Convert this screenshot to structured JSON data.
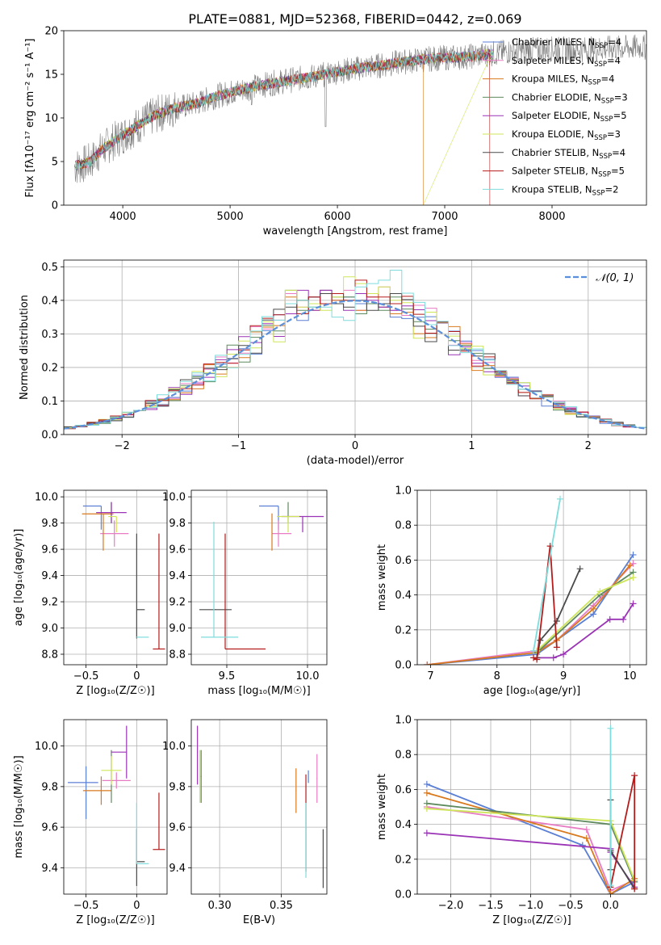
{
  "figure": {
    "title": "PLATE=0881, MJD=52368, FIBERID=0442, z=0.069"
  },
  "models": [
    {
      "name": "Chabrier MILES",
      "nssp": "4",
      "color": "#5b7fd4"
    },
    {
      "name": "Salpeter MILES",
      "nssp": "4",
      "color": "#e87cc4"
    },
    {
      "name": "Kroupa MILES",
      "nssp": "4",
      "color": "#d97a1e"
    },
    {
      "name": "Chabrier ELODIE",
      "nssp": "3",
      "color": "#5e8a5e"
    },
    {
      "name": "Salpeter ELODIE",
      "nssp": "5",
      "color": "#9a33b5"
    },
    {
      "name": "Kroupa ELODIE",
      "nssp": "3",
      "color": "#cfe65a"
    },
    {
      "name": "Chabrier STELIB",
      "nssp": "4",
      "color": "#4a4a4a"
    },
    {
      "name": "Salpeter STELIB",
      "nssp": "5",
      "color": "#b51c1c"
    },
    {
      "name": "Kroupa STELIB",
      "nssp": "2",
      "color": "#7fdcdc"
    }
  ],
  "chart_data": [
    {
      "id": "spectrum",
      "type": "line",
      "title": "PLATE=0881, MJD=52368, FIBERID=0442, z=0.069",
      "xlabel": "wavelength [Angstrom, rest frame]",
      "ylabel": "Flux [fλ10⁻¹⁷ erg cm⁻² s⁻¹ A⁻¹]",
      "xlim": [
        3450,
        8880
      ],
      "ylim": [
        0,
        20
      ],
      "xticks": [
        4000,
        5000,
        6000,
        7000,
        8000
      ],
      "yticks": [
        0,
        5,
        10,
        15,
        20
      ],
      "legend": "top-right",
      "data_continuum": {
        "x": [
          3500,
          3600,
          3700,
          3800,
          3900,
          4000,
          4100,
          4200,
          4300,
          4400,
          4500,
          4600,
          4700,
          4800,
          4900,
          5000,
          5200,
          5400,
          5600,
          5800,
          6000,
          6200,
          6400,
          6600,
          6800,
          7000,
          7200,
          7400,
          7600,
          7800,
          8000,
          8200,
          8400,
          8600,
          8800
        ],
        "y": [
          4.3,
          4.5,
          5.0,
          6.3,
          7.2,
          8.0,
          8.8,
          9.6,
          10.3,
          10.8,
          11.2,
          11.4,
          11.7,
          12.2,
          12.6,
          12.9,
          13.5,
          14.0,
          14.4,
          14.8,
          15.3,
          15.7,
          16.0,
          16.4,
          16.7,
          16.9,
          17.0,
          17.3,
          17.6,
          17.8,
          17.9,
          17.8,
          17.9,
          18.0,
          18.1
        ]
      },
      "model_continuum": {
        "x": [
          3550,
          3600,
          3700,
          3800,
          3900,
          4000,
          4100,
          4200,
          4300,
          4400,
          4500,
          4600,
          4700,
          4800,
          4900,
          5000,
          5200,
          5400,
          5600,
          5800,
          6000,
          6200,
          6400,
          6600,
          6800,
          7000,
          7200,
          7400
        ],
        "y": [
          4.5,
          4.6,
          5.0,
          6.3,
          7.2,
          8.0,
          8.8,
          9.6,
          10.3,
          10.8,
          11.2,
          11.4,
          11.7,
          12.2,
          12.6,
          12.9,
          13.5,
          14.0,
          14.4,
          14.8,
          15.3,
          15.7,
          16.0,
          16.4,
          16.7,
          16.9,
          17.0,
          17.3
        ]
      }
    },
    {
      "id": "residuals",
      "type": "histogram",
      "xlabel": "(data-model)/error",
      "ylabel": "Normed distribution",
      "xlim": [
        -2.5,
        2.5
      ],
      "ylim": [
        0,
        0.52
      ],
      "xticks": [
        -2,
        -1,
        0,
        1,
        2
      ],
      "yticks": [
        0.0,
        0.1,
        0.2,
        0.3,
        0.4,
        0.5
      ],
      "legend": "top-right",
      "reference_label": "𝒩(0, 1)",
      "reference_color": "#5b8fd9",
      "bin_width": 0.1,
      "peak_heights": [
        [
          0.36,
          0.34,
          0.41,
          0.39,
          0.4,
          0.41,
          0.39,
          0.42,
          0.38,
          0.35
        ],
        [
          0.42,
          0.38,
          0.39,
          0.43,
          0.4,
          0.43,
          0.37,
          0.41,
          0.44,
          0.37
        ],
        [
          0.41,
          0.4,
          0.37,
          0.39,
          0.4,
          0.4,
          0.37,
          0.42,
          0.38,
          0.36
        ],
        [
          0.43,
          0.37,
          0.38,
          0.43,
          0.41,
          0.41,
          0.36,
          0.39,
          0.37,
          0.41
        ],
        [
          0.36,
          0.43,
          0.37,
          0.43,
          0.39,
          0.37,
          0.42,
          0.4,
          0.38,
          0.37
        ],
        [
          0.43,
          0.38,
          0.39,
          0.37,
          0.41,
          0.47,
          0.45,
          0.42,
          0.44,
          0.4
        ],
        [
          0.38,
          0.4,
          0.41,
          0.42,
          0.39,
          0.38,
          0.4,
          0.37,
          0.39,
          0.42
        ],
        [
          0.39,
          0.36,
          0.41,
          0.39,
          0.42,
          0.4,
          0.46,
          0.41,
          0.41,
          0.39
        ],
        [
          0.39,
          0.4,
          0.38,
          0.38,
          0.35,
          0.34,
          0.44,
          0.45,
          0.46,
          0.49
        ]
      ]
    },
    {
      "id": "age-vs-Z",
      "type": "errorbar",
      "xlabel": "Z [log₁₀(Z/Z☉)]",
      "ylabel": "age  [log₁₀(age/yr)]",
      "xlim": [
        -0.72,
        0.3
      ],
      "ylim": [
        8.72,
        10.05
      ],
      "xticks": [
        -0.5,
        0.0
      ],
      "yticks": [
        8.8,
        9.0,
        9.2,
        9.4,
        9.6,
        9.8,
        10.0
      ],
      "points": [
        {
          "x": -0.35,
          "xerr": [
            0.18,
            0.0
          ],
          "y": 9.93,
          "yerr": [
            0.18,
            0.0
          ]
        },
        {
          "x": -0.22,
          "xerr": [
            0.14,
            0.14
          ],
          "y": 9.72,
          "yerr": [
            0.1,
            0.1
          ]
        },
        {
          "x": -0.33,
          "xerr": [
            0.21,
            0.1
          ],
          "y": 9.87,
          "yerr": [
            0.28,
            0.0
          ]
        },
        {
          "x": -0.25,
          "xerr": [
            0.0,
            0.0
          ],
          "y": 9.88,
          "yerr": [
            0.08,
            0.08
          ]
        },
        {
          "x": -0.25,
          "xerr": [
            0.15,
            0.15
          ],
          "y": 9.88,
          "yerr": [
            0.08,
            0.08
          ]
        },
        {
          "x": -0.2,
          "xerr": [
            0.08,
            0.0
          ],
          "y": 9.85,
          "yerr": [
            0.12,
            0.0
          ]
        },
        {
          "x": 0.0,
          "xerr": [
            0.0,
            0.08
          ],
          "y": 9.14,
          "yerr": [
            0.22,
            0.58
          ]
        },
        {
          "x": 0.22,
          "xerr": [
            0.06,
            0.06
          ],
          "y": 8.84,
          "yerr": [
            0.0,
            0.88
          ]
        },
        {
          "x": 0.0,
          "xerr": [
            0.0,
            0.12
          ],
          "y": 8.93,
          "yerr": [
            0.0,
            0.0
          ]
        }
      ]
    },
    {
      "id": "age-vs-mass",
      "type": "errorbar",
      "xlabel": "mass [log₁₀(M/M☉)]",
      "ylabel": "",
      "xlim": [
        9.28,
        10.12
      ],
      "ylim": [
        8.72,
        10.05
      ],
      "xticks": [
        9.5,
        10.0
      ],
      "yticks": [
        8.8,
        9.0,
        9.2,
        9.4,
        9.6,
        9.8,
        10.0
      ],
      "points": [
        {
          "x": 9.82,
          "xerr": [
            0.12,
            0.0
          ],
          "y": 9.93,
          "yerr": [
            0.18,
            0.0
          ]
        },
        {
          "x": 9.82,
          "xerr": [
            0.04,
            0.08
          ],
          "y": 9.72,
          "yerr": [
            0.1,
            0.1
          ]
        },
        {
          "x": 9.78,
          "xerr": [
            0.0,
            0.0
          ],
          "y": 9.87,
          "yerr": [
            0.28,
            0.0
          ]
        },
        {
          "x": 9.88,
          "xerr": [
            0.0,
            0.0
          ],
          "y": 9.88,
          "yerr": [
            0.08,
            0.08
          ]
        },
        {
          "x": 9.97,
          "xerr": [
            0.13,
            0.13
          ],
          "y": 9.85,
          "yerr": [
            0.12,
            0.0
          ]
        },
        {
          "x": 9.88,
          "xerr": [
            0.07,
            0.07
          ],
          "y": 9.85,
          "yerr": [
            0.12,
            0.0
          ]
        },
        {
          "x": 9.43,
          "xerr": [
            0.1,
            0.1
          ],
          "y": 9.14,
          "yerr": [
            0.0,
            0.0
          ]
        },
        {
          "x": 9.49,
          "xerr": [
            0.0,
            0.25
          ],
          "y": 8.84,
          "yerr": [
            0.0,
            0.88
          ]
        },
        {
          "x": 9.42,
          "xerr": [
            0.08,
            0.15
          ],
          "y": 8.93,
          "yerr": [
            0.0,
            0.88
          ]
        }
      ]
    },
    {
      "id": "mass-weight-vs-age",
      "type": "line",
      "xlabel": "age  [log₁₀(age/yr)]",
      "ylabel": "mass weight",
      "xlim": [
        6.8,
        10.25
      ],
      "ylim": [
        0,
        1
      ],
      "xticks": [
        7,
        8,
        9,
        10
      ],
      "yticks": [
        0.0,
        0.2,
        0.4,
        0.6,
        0.8,
        1.0
      ],
      "series": [
        {
          "x": [
            6.95,
            8.6,
            9.45,
            10.05
          ],
          "y": [
            0.0,
            0.06,
            0.29,
            0.63
          ]
        },
        {
          "x": [
            6.95,
            8.6,
            8.9,
            9.45,
            10.05
          ],
          "y": [
            0.0,
            0.08,
            0.14,
            0.34,
            0.58
          ]
        },
        {
          "x": [
            6.95,
            8.6,
            8.9,
            9.45,
            10.0
          ],
          "y": [
            0.0,
            0.07,
            0.14,
            0.32,
            0.57
          ]
        },
        {
          "x": [
            8.6,
            9.55,
            10.05
          ],
          "y": [
            0.07,
            0.4,
            0.53
          ]
        },
        {
          "x": [
            8.6,
            8.85,
            9.0,
            9.7,
            9.9,
            10.05
          ],
          "y": [
            0.04,
            0.04,
            0.06,
            0.26,
            0.26,
            0.35
          ]
        },
        {
          "x": [
            8.6,
            9.55,
            10.05
          ],
          "y": [
            0.08,
            0.42,
            0.5
          ]
        },
        {
          "x": [
            8.6,
            8.65,
            8.9,
            9.25
          ],
          "y": [
            0.04,
            0.14,
            0.25,
            0.55
          ]
        },
        {
          "x": [
            8.55,
            8.6,
            8.8,
            8.9
          ],
          "y": [
            0.04,
            0.03,
            0.68,
            0.1
          ]
        },
        {
          "x": [
            8.55,
            8.95
          ],
          "y": [
            0.08,
            0.95
          ]
        }
      ]
    },
    {
      "id": "mass-vs-Z",
      "type": "errorbar",
      "xlabel": "Z [log₁₀(Z/Z☉)]",
      "ylabel": "mass [log₁₀(M/M☉)]",
      "xlim": [
        -0.72,
        0.3
      ],
      "ylim": [
        9.27,
        10.13
      ],
      "xticks": [
        -0.5,
        0.0
      ],
      "yticks": [
        9.4,
        9.6,
        9.8,
        10.0
      ],
      "points": [
        {
          "x": -0.5,
          "xerr": [
            0.18,
            0.12
          ],
          "y": 9.82,
          "yerr": [
            0.18,
            0.08
          ]
        },
        {
          "x": -0.2,
          "xerr": [
            0.14,
            0.14
          ],
          "y": 9.83,
          "yerr": [
            0.04,
            0.04
          ]
        },
        {
          "x": -0.35,
          "xerr": [
            0.18,
            0.1
          ],
          "y": 9.78,
          "yerr": [
            0.07,
            0.07
          ]
        },
        {
          "x": -0.25,
          "xerr": [
            0.0,
            0.0
          ],
          "y": 9.85,
          "yerr": [
            0.13,
            0.13
          ]
        },
        {
          "x": -0.1,
          "xerr": [
            0.15,
            0.0
          ],
          "y": 9.97,
          "yerr": [
            0.13,
            0.13
          ]
        },
        {
          "x": -0.25,
          "xerr": [
            0.1,
            0.1
          ],
          "y": 9.88,
          "yerr": [
            0.07,
            0.07
          ]
        },
        {
          "x": 0.0,
          "xerr": [
            0.0,
            0.08
          ],
          "y": 9.43,
          "yerr": [
            0.12,
            0.16
          ]
        },
        {
          "x": 0.22,
          "xerr": [
            0.06,
            0.06
          ],
          "y": 9.49,
          "yerr": [
            0.0,
            0.28
          ]
        },
        {
          "x": 0.0,
          "xerr": [
            0.0,
            0.12
          ],
          "y": 9.42,
          "yerr": [
            0.0,
            0.3
          ]
        }
      ]
    },
    {
      "id": "mass-vs-ebv",
      "type": "errorbar",
      "xlabel": "E(B-V)",
      "ylabel": "",
      "xlim": [
        0.277,
        0.387
      ],
      "ylim": [
        9.27,
        10.13
      ],
      "xticks": [
        0.3,
        0.35
      ],
      "yticks": [
        9.4,
        9.6,
        9.8,
        10.0
      ],
      "points": [
        {
          "x": 0.372,
          "xerr": [
            0,
            0
          ],
          "y": 9.82,
          "yerr": [
            0.0,
            0.06
          ]
        },
        {
          "x": 0.379,
          "xerr": [
            0,
            0
          ],
          "y": 9.84,
          "yerr": [
            0.12,
            0.12
          ]
        },
        {
          "x": 0.362,
          "xerr": [
            0,
            0
          ],
          "y": 9.78,
          "yerr": [
            0.11,
            0.11
          ]
        },
        {
          "x": 0.285,
          "xerr": [
            0,
            0
          ],
          "y": 9.85,
          "yerr": [
            0.13,
            0.13
          ]
        },
        {
          "x": 0.282,
          "xerr": [
            0,
            0
          ],
          "y": 9.97,
          "yerr": [
            0.16,
            0.13
          ]
        },
        {
          "x": 0.284,
          "xerr": [
            0,
            0
          ],
          "y": 9.85,
          "yerr": [
            0.13,
            0.13
          ]
        },
        {
          "x": 0.384,
          "xerr": [
            0,
            0
          ],
          "y": 9.45,
          "yerr": [
            0.15,
            0.14
          ]
        },
        {
          "x": 0.37,
          "xerr": [
            0,
            0
          ],
          "y": 9.62,
          "yerr": [
            0.24,
            0.24
          ]
        },
        {
          "x": 0.37,
          "xerr": [
            0,
            0
          ],
          "y": 9.55,
          "yerr": [
            0.2,
            0.17
          ]
        }
      ]
    },
    {
      "id": "mass-weight-vs-Z",
      "type": "line",
      "xlabel": "Z [log₁₀(Z/Z☉)]",
      "ylabel": "mass weight",
      "xlim": [
        -2.42,
        0.45
      ],
      "ylim": [
        0,
        1
      ],
      "xticks": [
        -2.0,
        -1.5,
        -1.0,
        -0.5,
        0.0
      ],
      "yticks": [
        0.0,
        0.2,
        0.4,
        0.6,
        0.8,
        1.0
      ],
      "series": [
        {
          "x": [
            -2.3,
            -0.35,
            0.0,
            0.3
          ],
          "y": [
            0.63,
            0.28,
            0.0,
            0.07
          ]
        },
        {
          "x": [
            -2.3,
            -0.3,
            0.0,
            0.3
          ],
          "y": [
            0.5,
            0.37,
            0.02,
            0.08
          ]
        },
        {
          "x": [
            -2.3,
            -0.3,
            0.0,
            0.3
          ],
          "y": [
            0.58,
            0.32,
            0.0,
            0.09
          ]
        },
        {
          "x": [
            -2.3,
            0.0,
            0.3
          ],
          "y": [
            0.52,
            0.4,
            0.07
          ]
        },
        {
          "x": [
            -2.3,
            0.0,
            0.0,
            0.3
          ],
          "y": [
            0.35,
            0.26,
            0.24,
            0.04
          ]
        },
        {
          "x": [
            -2.3,
            0.0,
            0.3
          ],
          "y": [
            0.49,
            0.42,
            0.08
          ]
        },
        {
          "x": [
            0.0,
            0.0,
            0.0,
            0.3
          ],
          "y": [
            0.54,
            0.14,
            0.25,
            0.03
          ]
        },
        {
          "x": [
            0.0,
            0.3,
            0.3
          ],
          "y": [
            0.04,
            0.68,
            0.03
          ]
        },
        {
          "x": [
            0.0,
            0.0
          ],
          "y": [
            0.95,
            0.05
          ]
        }
      ]
    }
  ]
}
